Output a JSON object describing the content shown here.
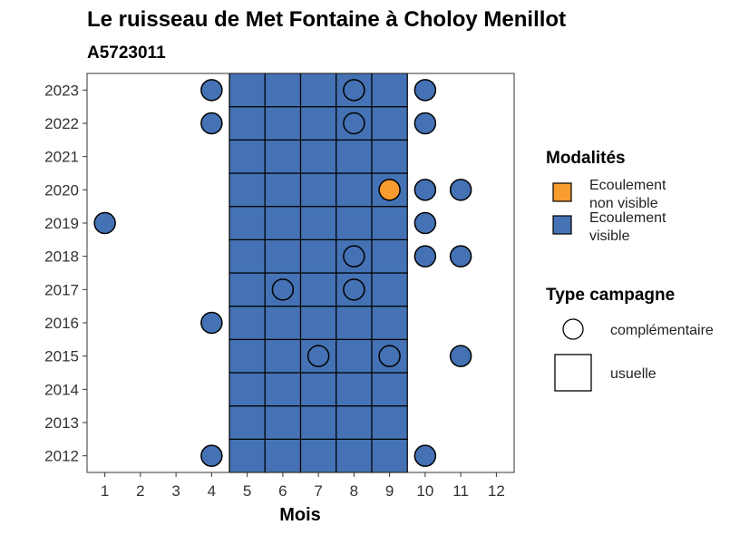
{
  "chart_data": {
    "type": "heatmap",
    "title": "Le ruisseau de Met Fontaine à Choloy Menillot",
    "subtitle": "A5723011",
    "xlabel": "Mois",
    "ylabel": "",
    "x_ticks": [
      1,
      2,
      3,
      4,
      5,
      6,
      7,
      8,
      9,
      10,
      11,
      12
    ],
    "y_ticks": [
      2012,
      2013,
      2014,
      2015,
      2016,
      2017,
      2018,
      2019,
      2020,
      2021,
      2022,
      2023
    ],
    "xlim": [
      0.5,
      12.5
    ],
    "ylim": [
      2011.5,
      2023.5
    ],
    "grid": false,
    "colors": {
      "ecoulement_non_visible": "#f89c30",
      "ecoulement_visible": "#4472b4",
      "outline": "#000000"
    },
    "usuelle_months": [
      5,
      6,
      7,
      8,
      9
    ],
    "usuelle_years": [
      2012,
      2013,
      2014,
      2015,
      2016,
      2017,
      2018,
      2019,
      2020,
      2021,
      2022,
      2023
    ],
    "usuelle_modalite": "Ecoulement visible",
    "complementaire_points": [
      {
        "x": 4,
        "y": 2023,
        "modalite": "Ecoulement visible"
      },
      {
        "x": 8,
        "y": 2023,
        "modalite": "Ecoulement visible"
      },
      {
        "x": 10,
        "y": 2023,
        "modalite": "Ecoulement visible"
      },
      {
        "x": 4,
        "y": 2022,
        "modalite": "Ecoulement visible"
      },
      {
        "x": 8,
        "y": 2022,
        "modalite": "Ecoulement visible"
      },
      {
        "x": 10,
        "y": 2022,
        "modalite": "Ecoulement visible"
      },
      {
        "x": 9,
        "y": 2020,
        "modalite": "Ecoulement non visible"
      },
      {
        "x": 10,
        "y": 2020,
        "modalite": "Ecoulement visible"
      },
      {
        "x": 11,
        "y": 2020,
        "modalite": "Ecoulement visible"
      },
      {
        "x": 1,
        "y": 2019,
        "modalite": "Ecoulement visible"
      },
      {
        "x": 10,
        "y": 2019,
        "modalite": "Ecoulement visible"
      },
      {
        "x": 8,
        "y": 2018,
        "modalite": "Ecoulement visible"
      },
      {
        "x": 10,
        "y": 2018,
        "modalite": "Ecoulement visible"
      },
      {
        "x": 11,
        "y": 2018,
        "modalite": "Ecoulement visible"
      },
      {
        "x": 6,
        "y": 2017,
        "modalite": "Ecoulement visible"
      },
      {
        "x": 8,
        "y": 2017,
        "modalite": "Ecoulement visible"
      },
      {
        "x": 4,
        "y": 2016,
        "modalite": "Ecoulement visible"
      },
      {
        "x": 7,
        "y": 2015,
        "modalite": "Ecoulement visible"
      },
      {
        "x": 9,
        "y": 2015,
        "modalite": "Ecoulement visible"
      },
      {
        "x": 11,
        "y": 2015,
        "modalite": "Ecoulement visible"
      },
      {
        "x": 4,
        "y": 2012,
        "modalite": "Ecoulement visible"
      },
      {
        "x": 10,
        "y": 2012,
        "modalite": "Ecoulement visible"
      }
    ],
    "legend_modalites": {
      "title": "Modalités",
      "items": [
        {
          "lines": [
            "Ecoulement",
            "non visible"
          ],
          "color": "#f89c30"
        },
        {
          "lines": [
            "Ecoulement",
            "visible"
          ],
          "color": "#4472b4"
        }
      ]
    },
    "legend_campagne": {
      "title": "Type campagne",
      "items": [
        {
          "label": "complémentaire",
          "shape": "circle"
        },
        {
          "label": "usuelle",
          "shape": "square"
        }
      ]
    },
    "legend_placement": "right"
  }
}
